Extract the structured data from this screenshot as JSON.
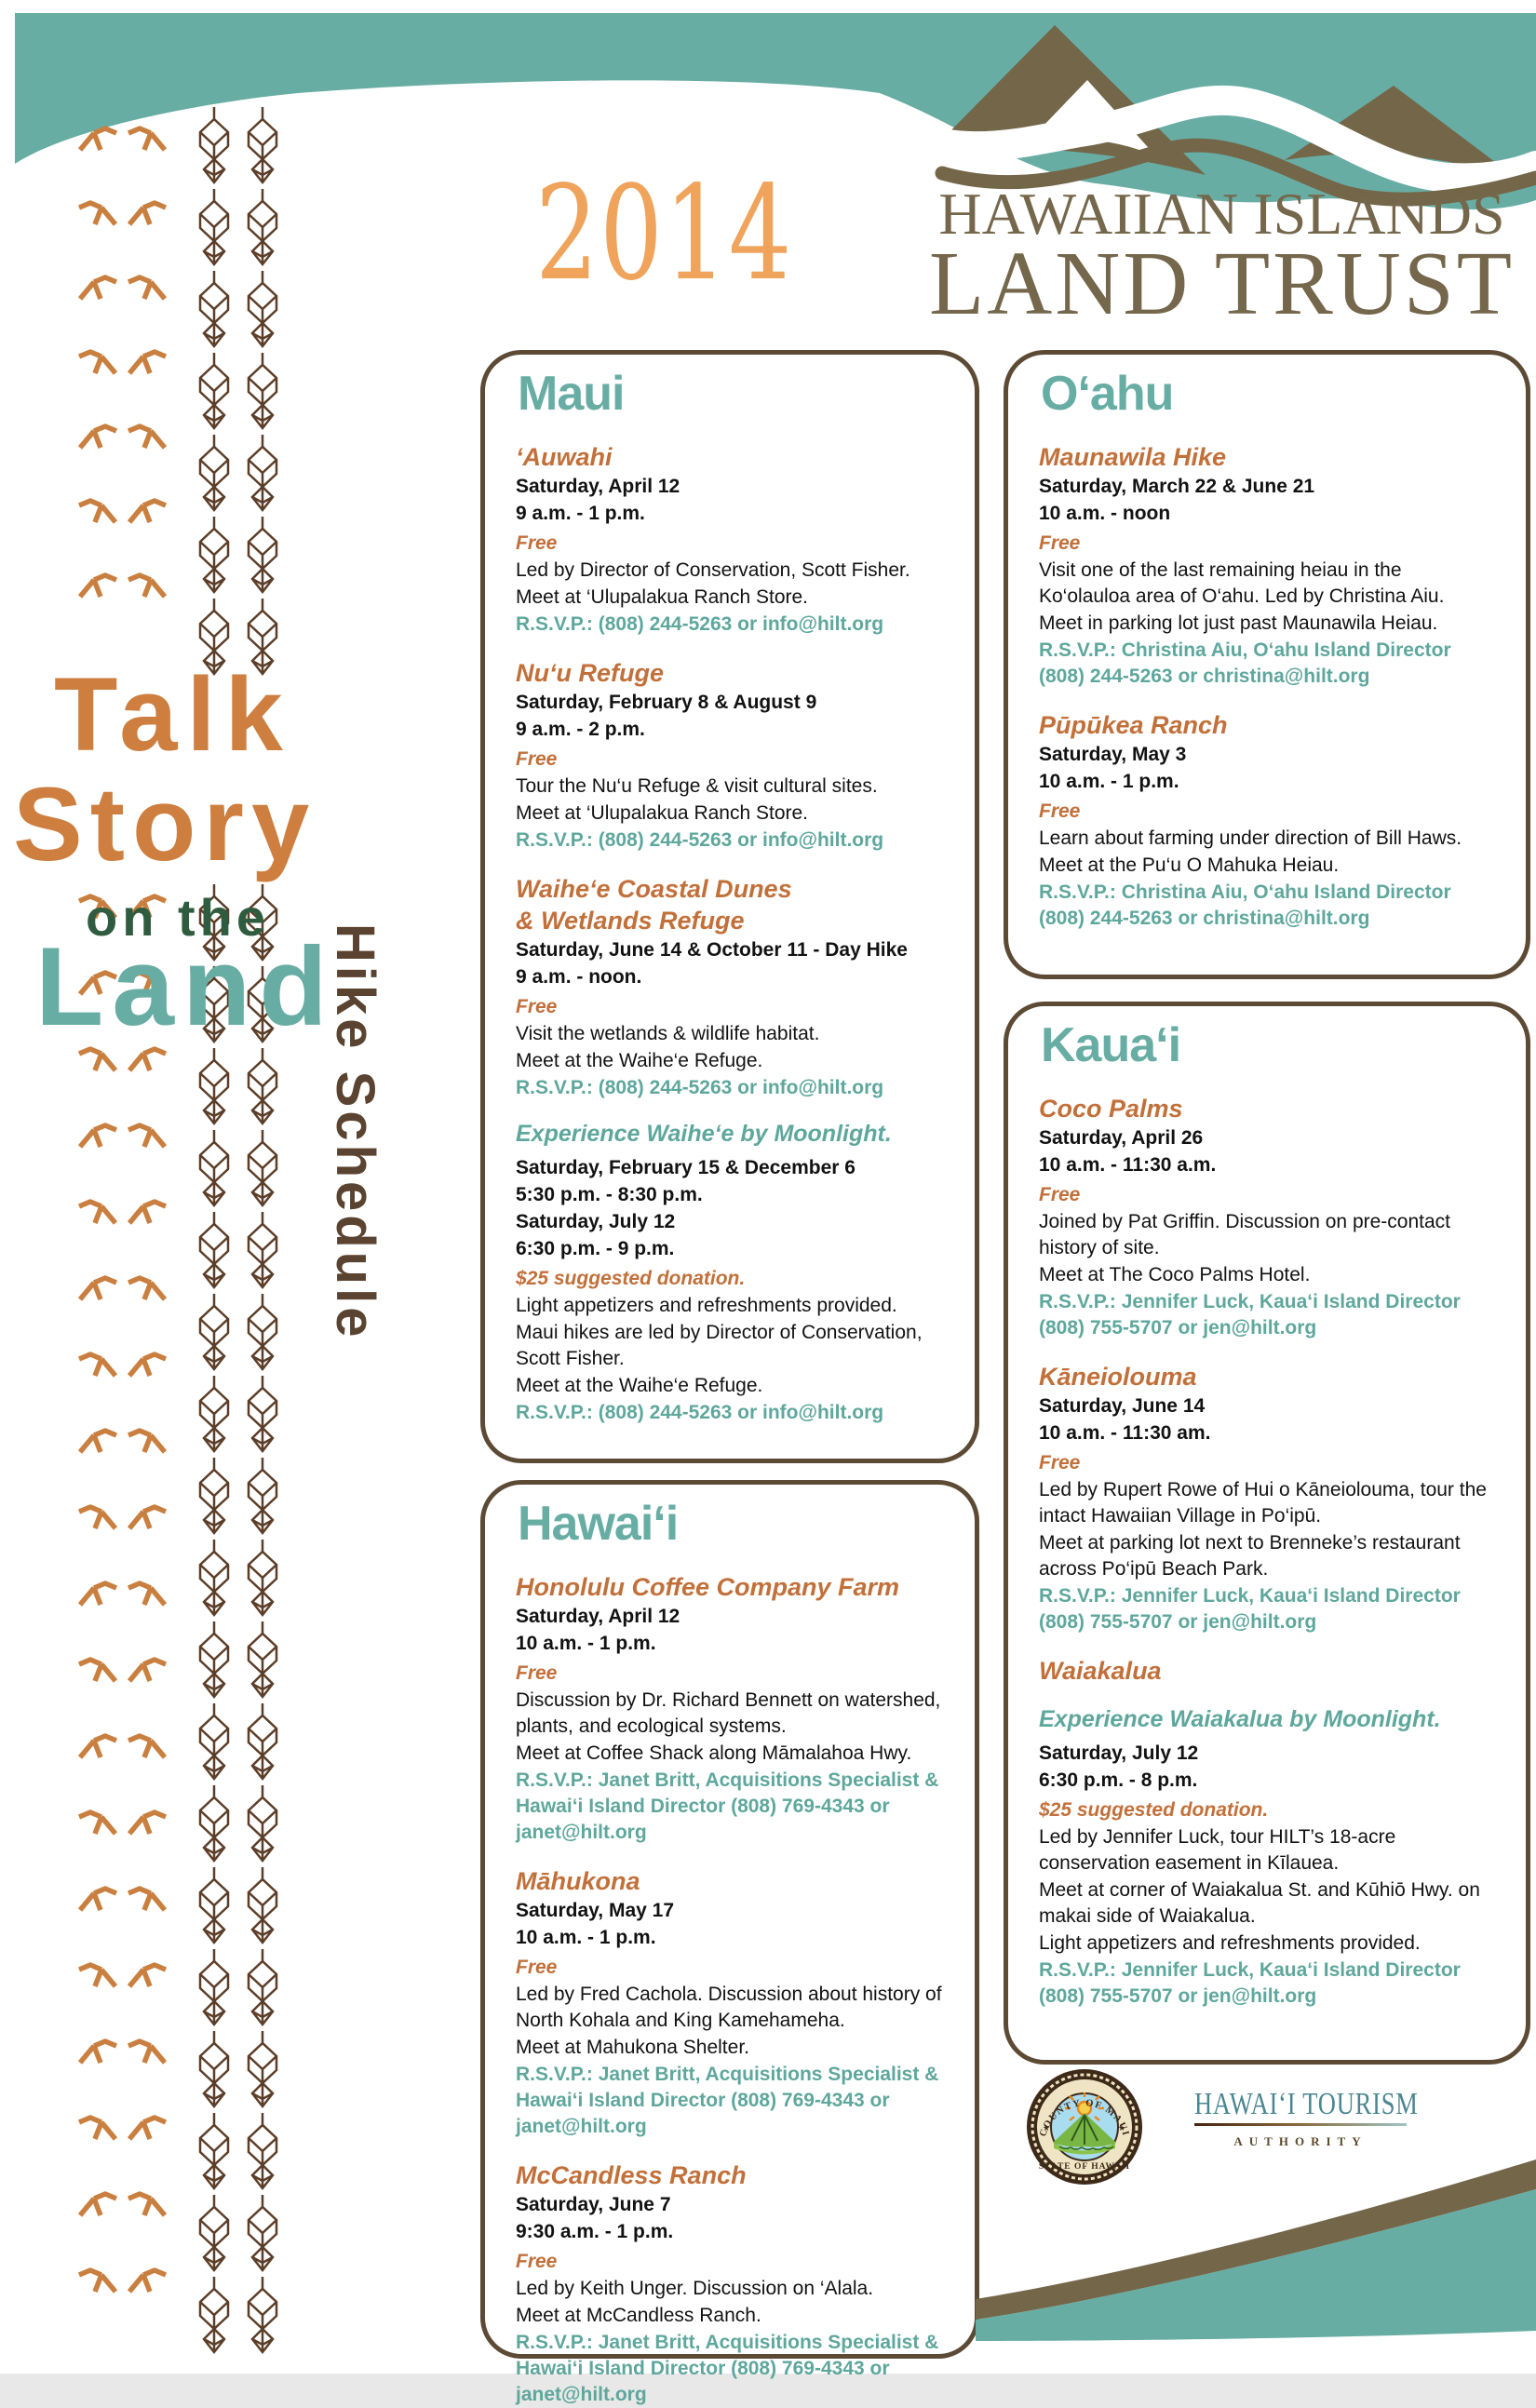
{
  "poster": {
    "year": "2014",
    "brand": {
      "line1": "HAWAIIAN ISLANDS",
      "line2": "LAND TRUST"
    },
    "title": {
      "word1": "Talk",
      "word2": "Story",
      "word3": "on the",
      "word4": "Land",
      "vertical": "Hike Schedule"
    },
    "colors": {
      "teal": "#68ada4",
      "rsvp_teal": "#5ea79c",
      "header_orange": "#c2703a",
      "year_orange": "#efa35b",
      "title_orange": "#ce7f3f",
      "logo_brown": "#75674b",
      "border_brown": "#5c4a35",
      "subtitle_brown": "#5a4330",
      "on_the_green": "#2f5c3f",
      "petroglyph_orange": "#c97f3f",
      "plant_brown": "#5c3e28"
    },
    "icons": {
      "left_strip_bird": "petroglyph-bird-icon",
      "left_strip_plant": "kapa-plant-icon",
      "header_logo": "mountain-wave-logo",
      "seal": "county-of-maui-seal",
      "footer": "wave-decoration"
    }
  },
  "sections": [
    {
      "key": "maui",
      "title": "Maui",
      "events": [
        {
          "name": [
            "‘Auwahi"
          ],
          "lines": [
            {
              "t": "d",
              "text": "Saturday, April 12"
            },
            {
              "t": "d",
              "text": "9 a.m. - 1 p.m."
            },
            {
              "t": "f",
              "text": "Free"
            },
            {
              "t": "b",
              "text": "Led by Director of Conservation, Scott Fisher."
            },
            {
              "t": "b",
              "text": "Meet at ‘Ulupalakua Ranch Store."
            },
            {
              "t": "r",
              "text": "R.S.V.P.: (808) 244-5263 or info@hilt.org"
            }
          ]
        },
        {
          "name": [
            "Nu‘u Refuge"
          ],
          "lines": [
            {
              "t": "d",
              "text": "Saturday, February 8 & August 9"
            },
            {
              "t": "d",
              "text": "9 a.m. - 2 p.m."
            },
            {
              "t": "f",
              "text": "Free"
            },
            {
              "t": "b",
              "text": "Tour the Nu‘u Refuge & visit cultural sites."
            },
            {
              "t": "b",
              "text": "Meet at ‘Ulupalakua Ranch Store."
            },
            {
              "t": "r",
              "text": "R.S.V.P.: (808) 244-5263 or info@hilt.org"
            }
          ]
        },
        {
          "name": [
            "Waihe‘e Coastal Dunes",
            "& Wetlands Refuge"
          ],
          "lines": [
            {
              "t": "d",
              "text": "Saturday, June 14 & October 11 - Day Hike"
            },
            {
              "t": "d",
              "text": "9 a.m. - noon."
            },
            {
              "t": "f",
              "text": "Free"
            },
            {
              "t": "b",
              "text": "Visit the wetlands & wildlife habitat."
            },
            {
              "t": "b",
              "text": "Meet at the Waihe‘e Refuge."
            },
            {
              "t": "r",
              "text": "R.S.V.P.: (808) 244-5263 or info@hilt.org"
            },
            {
              "t": "s",
              "text": "Experience Waihe‘e by Moonlight."
            },
            {
              "t": "d",
              "text": "Saturday, February 15 & December 6"
            },
            {
              "t": "d",
              "text": "5:30 p.m. - 8:30 p.m."
            },
            {
              "t": "d",
              "text": "Saturday, July 12"
            },
            {
              "t": "d",
              "text": "6:30 p.m. - 9 p.m."
            },
            {
              "t": "f",
              "text": "$25 suggested donation."
            },
            {
              "t": "b",
              "text": "Light appetizers and refreshments provided."
            },
            {
              "t": "b",
              "text": "Maui hikes are led by Director of Conservation, Scott Fisher."
            },
            {
              "t": "b",
              "text": "Meet at the Waihe‘e Refuge."
            },
            {
              "t": "r",
              "text": "R.S.V.P.: (808) 244-5263 or info@hilt.org"
            }
          ]
        }
      ]
    },
    {
      "key": "oahu",
      "title": "O‘ahu",
      "events": [
        {
          "name": [
            "Maunawila Hike"
          ],
          "lines": [
            {
              "t": "d",
              "text": "Saturday, March 22  & June 21"
            },
            {
              "t": "d",
              "text": "10 a.m. - noon"
            },
            {
              "t": "f",
              "text": "Free"
            },
            {
              "t": "b",
              "text": "Visit one of the last remaining heiau in the Ko‘olauloa area of O‘ahu.  Led by Christina Aiu."
            },
            {
              "t": "b",
              "text": "Meet in parking lot just past Maunawila Heiau."
            },
            {
              "t": "r",
              "text": "R.S.V.P.:  Christina Aiu, O‘ahu Island Director (808) 244-5263 or christina@hilt.org"
            }
          ]
        },
        {
          "name": [
            "Pūpūkea Ranch"
          ],
          "lines": [
            {
              "t": "d",
              "text": "Saturday, May 3"
            },
            {
              "t": "d",
              "text": "10 a.m. - 1 p.m."
            },
            {
              "t": "f",
              "text": "Free"
            },
            {
              "t": "b",
              "text": "Learn about farming under direction of Bill Haws."
            },
            {
              "t": "b",
              "text": "Meet at the Pu‘u O Mahuka Heiau."
            },
            {
              "t": "r",
              "text": "R.S.V.P.: Christina Aiu, O‘ahu Island Director (808) 244-5263 or christina@hilt.org"
            }
          ]
        }
      ]
    },
    {
      "key": "hawaii",
      "title": "Hawai‘i",
      "events": [
        {
          "name": [
            "Honolulu Coffee Company Farm"
          ],
          "lines": [
            {
              "t": "d",
              "text": "Saturday, April 12"
            },
            {
              "t": "d",
              "text": "10 a.m. - 1 p.m."
            },
            {
              "t": "f",
              "text": "Free"
            },
            {
              "t": "b",
              "text": "Discussion by Dr. Richard Bennett on watershed, plants, and ecological systems."
            },
            {
              "t": "b",
              "text": "Meet at Coffee Shack along Māmalahoa Hwy."
            },
            {
              "t": "r",
              "text": "R.S.V.P.: Janet Britt, Acquisitions Specialist & Hawai‘i Island Director (808) 769-4343 or janet@hilt.org"
            }
          ]
        },
        {
          "name": [
            "Māhukona"
          ],
          "lines": [
            {
              "t": "d",
              "text": "Saturday, May 17"
            },
            {
              "t": "d",
              "text": "10 a.m. - 1 p.m."
            },
            {
              "t": "f",
              "text": "Free"
            },
            {
              "t": "b",
              "text": "Led by Fred Cachola.  Discussion about history of North Kohala and King Kamehameha."
            },
            {
              "t": "b",
              "text": "Meet at Mahukona Shelter."
            },
            {
              "t": "r",
              "text": "R.S.V.P.: Janet Britt, Acquisitions Specialist & Hawai‘i Island Director (808) 769-4343 or janet@hilt.org"
            }
          ]
        },
        {
          "name": [
            "McCandless Ranch"
          ],
          "lines": [
            {
              "t": "d",
              "text": "Saturday, June 7"
            },
            {
              "t": "d",
              "text": "9:30 a.m. - 1 p.m."
            },
            {
              "t": "f",
              "text": "Free"
            },
            {
              "t": "b",
              "text": "Led by Keith Unger.  Discussion on ‘Alala."
            },
            {
              "t": "b",
              "text": "Meet at McCandless Ranch."
            },
            {
              "t": "r",
              "text": "R.S.V.P.: Janet Britt, Acquisitions Specialist & Hawai‘i Island Director (808) 769-4343 or janet@hilt.org"
            }
          ]
        }
      ]
    },
    {
      "key": "kauai",
      "title": "Kaua‘i",
      "events": [
        {
          "name": [
            "Coco Palms"
          ],
          "lines": [
            {
              "t": "d",
              "text": "Saturday, April 26"
            },
            {
              "t": "d",
              "text": "10 a.m. - 11:30 a.m."
            },
            {
              "t": "f",
              "text": "Free"
            },
            {
              "t": "b",
              "text": "Joined by Pat Griffin.  Discussion on pre-contact history of site."
            },
            {
              "t": "b",
              "text": "Meet at The Coco Palms Hotel."
            },
            {
              "t": "r",
              "text": "R.S.V.P.:  Jennifer Luck, Kaua‘i Island Director (808) 755-5707 or jen@hilt.org"
            }
          ]
        },
        {
          "name": [
            "Kāneiolouma"
          ],
          "lines": [
            {
              "t": "d",
              "text": "Saturday, June 14"
            },
            {
              "t": "d",
              "text": "10 a.m. - 11:30 am."
            },
            {
              "t": "f",
              "text": "Free"
            },
            {
              "t": "b",
              "text": "Led by Rupert Rowe of Hui o Kāneiolouma, tour the intact Hawaiian Village in Po‘ipū."
            },
            {
              "t": "b",
              "text": "Meet at parking lot next to Brenneke’s restaurant across Po‘ipū Beach Park."
            },
            {
              "t": "r",
              "text": "R.S.V.P.: Jennifer Luck, Kaua‘i Island Director (808) 755-5707 or jen@hilt.org"
            }
          ]
        },
        {
          "name": [
            "Waiakalua"
          ],
          "lines": [
            {
              "t": "s",
              "text": "Experience Waiakalua by Moonlight."
            },
            {
              "t": "d",
              "text": "Saturday, July 12"
            },
            {
              "t": "d",
              "text": "6:30 p.m. - 8 p.m."
            },
            {
              "t": "f",
              "text": "$25 suggested donation."
            },
            {
              "t": "b",
              "text": "Led by Jennifer Luck, tour HILT’s 18-acre conservation easement in Kīlauea."
            },
            {
              "t": "b",
              "text": "Meet at corner of Waiakalua St. and Kūhiō Hwy. on makai side of Waiakalua."
            },
            {
              "t": "b",
              "text": "Light appetizers and refreshments provided."
            },
            {
              "t": "r",
              "text": "R.S.V.P.: Jennifer Luck, Kaua‘i Island Director (808) 755-5707 or jen@hilt.org"
            }
          ]
        }
      ]
    }
  ],
  "footer": {
    "maui_seal": {
      "arc_top": "COUNTY OF MAUI",
      "arc_bottom": "STATE OF HAWAII"
    },
    "tourism_logo": {
      "line1": "HAWAI‘I TOURISM",
      "line2": "AUTHORITY"
    }
  }
}
